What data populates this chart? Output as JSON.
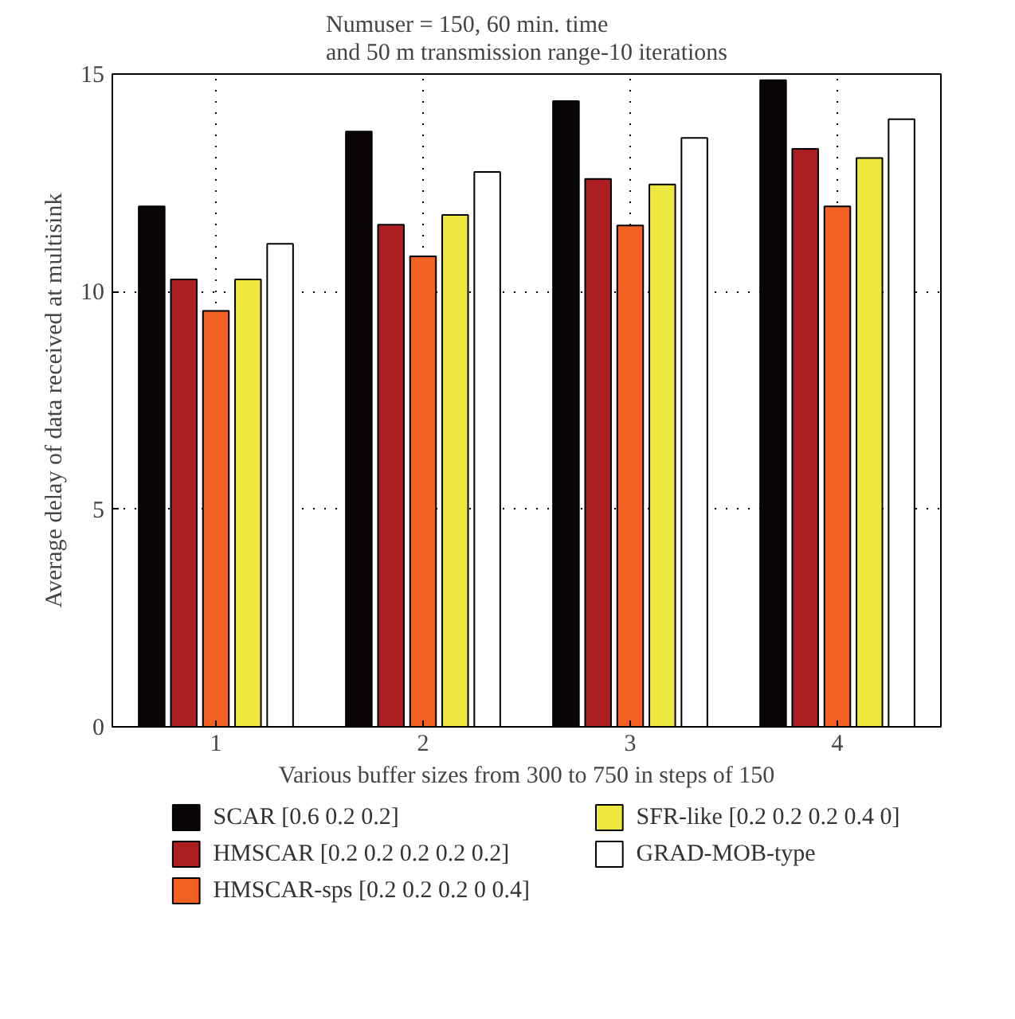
{
  "chart_data": {
    "type": "bar",
    "title": "Numuser = 150, 60 min. time\nand 50 m transmission range-10 iterations",
    "xlabel": "Various buffer sizes from 300 to 750 in steps of 150",
    "ylabel": "Average delay of data received at multisink",
    "categories": [
      "1",
      "2",
      "3",
      "4"
    ],
    "series": [
      {
        "name": "SCAR [0.6 0.2 0.2]",
        "color": "#0a0506",
        "values": [
          11.96,
          13.68,
          14.38,
          14.86
        ]
      },
      {
        "name": "HMSCAR [0.2 0.2 0.2 0.2 0.2]",
        "color": "#ad1e23",
        "values": [
          10.28,
          11.54,
          12.59,
          13.28
        ]
      },
      {
        "name": "HMSCAR-sps [0.2 0.2 0.2 0 0.4]",
        "color": "#f26122",
        "values": [
          9.56,
          10.81,
          11.52,
          11.96
        ]
      },
      {
        "name": "SFR-like [0.2 0.2 0.2 0.4 0]",
        "color": "#eee83e",
        "values": [
          10.28,
          11.76,
          12.46,
          13.07
        ]
      },
      {
        "name": "GRAD-MOB-type",
        "color": "#ffffff",
        "values": [
          11.1,
          12.75,
          13.53,
          13.96
        ]
      }
    ],
    "ylim": [
      0,
      15
    ],
    "yticks": [
      0,
      5,
      10,
      15
    ],
    "grid": true,
    "legend": "bottom"
  }
}
